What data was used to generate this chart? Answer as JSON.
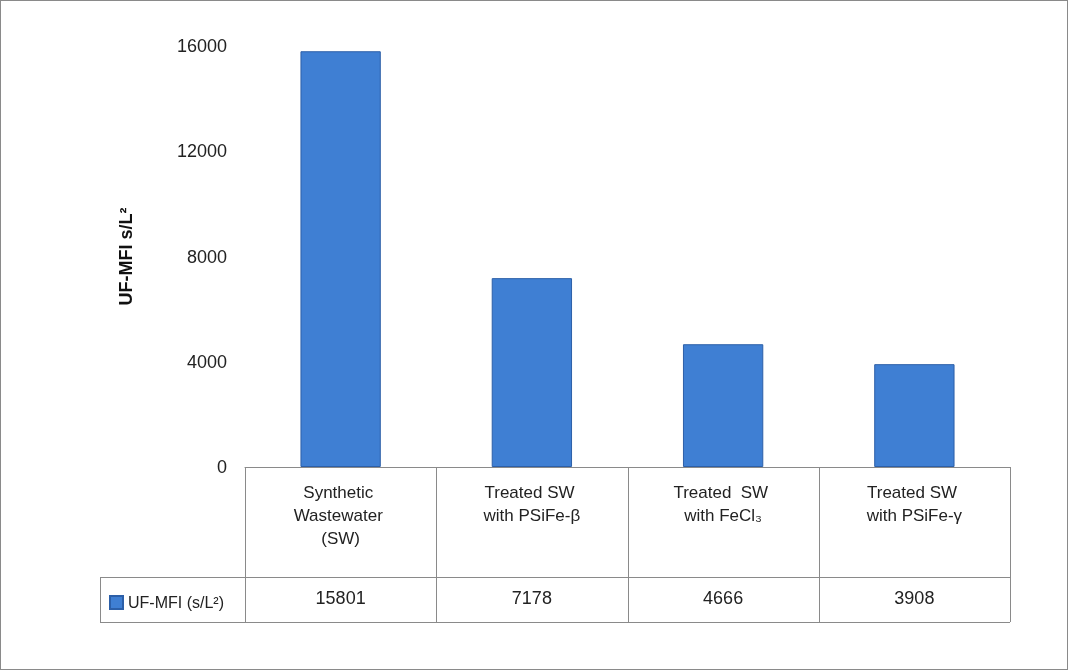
{
  "chart_data": {
    "type": "bar",
    "ylabel": "UF-MFI s/L²",
    "categories": [
      "Synthetic Wastewater (SW)",
      "Treated SW with PSiFe-β",
      "Treated  SW with FeCl₃",
      "Treated SW with PSiFe-γ"
    ],
    "series": [
      {
        "name": "UF-MFI (s/L²)",
        "color": "#3f7fd3",
        "values": [
          15801,
          7178,
          4666,
          3908
        ]
      }
    ],
    "ylim": [
      0,
      16000
    ],
    "yticks": [
      0,
      4000,
      8000,
      12000,
      16000
    ],
    "grid": false,
    "legend": "bottom left",
    "data_labels": true
  }
}
